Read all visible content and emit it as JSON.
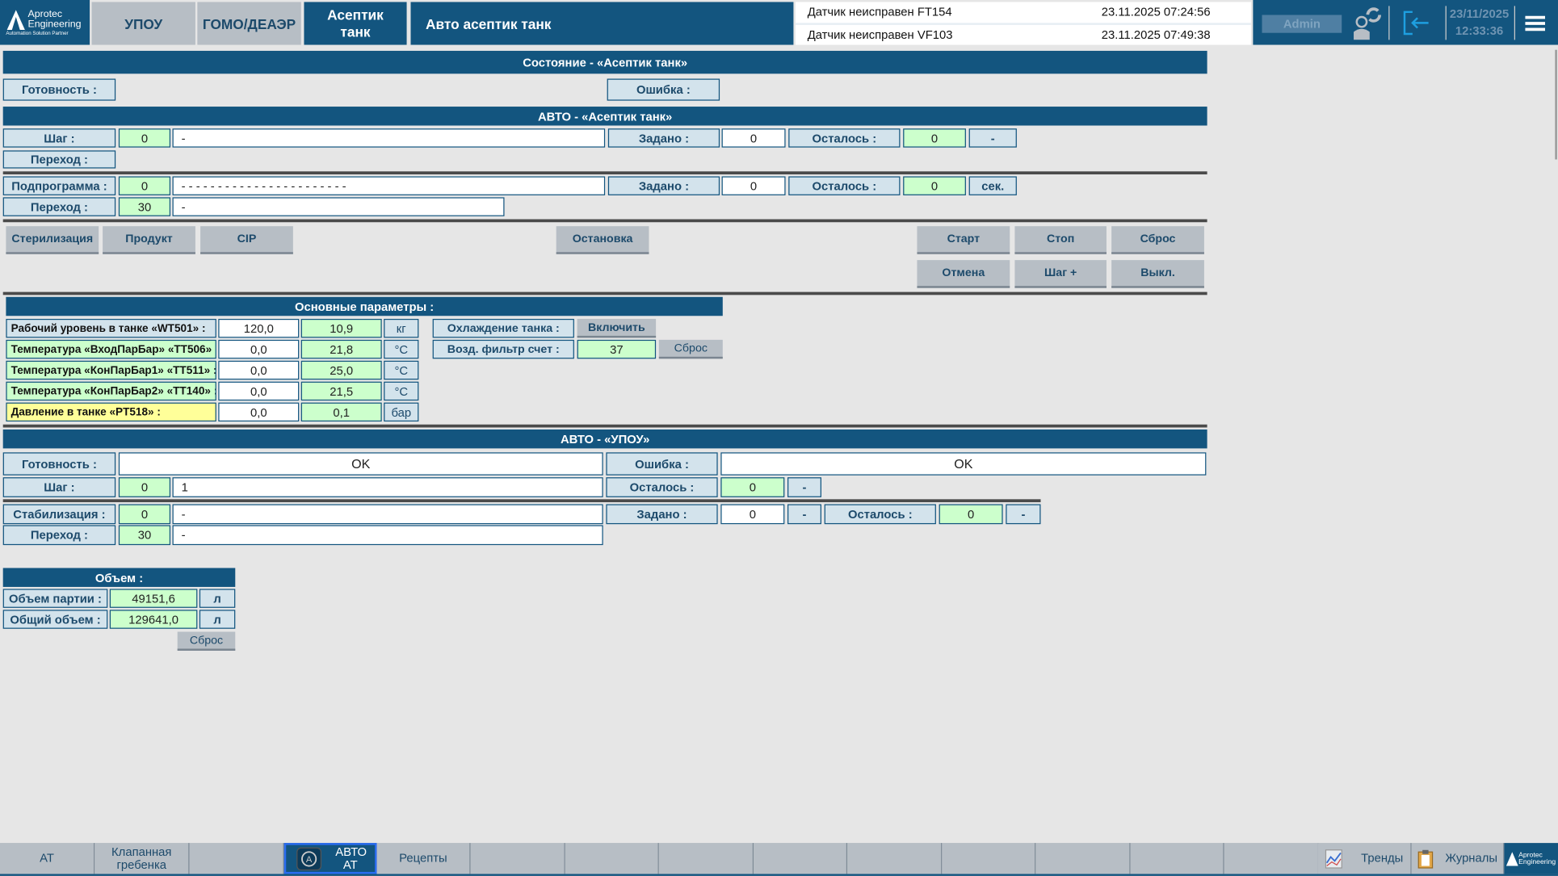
{
  "header": {
    "logo_line1": "Aprotec",
    "logo_line2": "Engineering",
    "logo_tagline": "Automation Solution Partner",
    "tabs": [
      {
        "label": "УПОУ"
      },
      {
        "label": "ГОМО/ДЕАЭР"
      },
      {
        "label": "Асептик танк",
        "active": true
      }
    ],
    "title": "Авто асептик танк",
    "alarms": [
      {
        "text": "Датчик неисправен FT154",
        "time": "23.11.2025 07:24:56"
      },
      {
        "text": "Датчик неисправен VF103",
        "time": "23.11.2025 07:49:38"
      }
    ],
    "user": "Admin",
    "date": "23/11/2025",
    "time": "12:33:36",
    "icons": [
      "user-switch-icon",
      "logout-icon",
      "menu-icon"
    ]
  },
  "state": {
    "title": "Состояние - «Асептик танк»",
    "ready_label": "Готовность :",
    "error_label": "Ошибка :"
  },
  "auto": {
    "title": "АВТО - «Асептик танк»",
    "step_label": "Шаг :",
    "step_value": "0",
    "step_text": "-",
    "set_label": "Задано :",
    "set_value": "0",
    "left_label": "Осталось :",
    "left_value": "0",
    "left_unit": "-",
    "transition_label": "Переход :",
    "sub_label": "Подпрограмма :",
    "sub_value": "0",
    "sub_text": "- - - - - - - - - - - - - - - - - - - - - - -",
    "sub_set_value": "0",
    "sub_left_value": "0",
    "sub_unit": "сек.",
    "sub_transition_value": "30",
    "sub_transition_text": "-"
  },
  "buttons": {
    "sterilization": "Стерилизация",
    "product": "Продукт",
    "cip": "CIP",
    "stop_process": "Остановка",
    "start": "Старт",
    "stop": "Стоп",
    "reset": "Сброс",
    "cancel": "Отмена",
    "step_plus": "Шаг +",
    "off": "Выкл."
  },
  "params": {
    "title": "Основные параметры :",
    "rows": [
      {
        "label": "Рабочий уровень в танке «WT501» :",
        "set": "120,0",
        "actual": "10,9",
        "unit": "кг"
      },
      {
        "label": "Температура «ВходПарБар» «TT506» :",
        "set": "0,0",
        "actual": "21,8",
        "unit": "°C"
      },
      {
        "label": "Температура «КонПарБар1» «TT511» :",
        "set": "0,0",
        "actual": "25,0",
        "unit": "°C"
      },
      {
        "label": "Температура «КонПарБар2» «TT140» :",
        "set": "0,0",
        "actual": "21,5",
        "unit": "°C"
      },
      {
        "label": "Давление в танке «PT518» :",
        "set": "0,0",
        "actual": "0,1",
        "unit": "бар"
      }
    ],
    "cooling_label": "Охлаждение танка :",
    "cooling_button": "Включить",
    "filter_label": "Возд. фильтр счет :",
    "filter_value": "37",
    "filter_reset": "Сброс"
  },
  "upou": {
    "title": "АВТО - «УПОУ»",
    "ready_label": "Готовность :",
    "ready_value": "OK",
    "error_label": "Ошибка :",
    "error_value": "OK",
    "step_label": "Шаг :",
    "step_value": "0",
    "step_text": "1",
    "left_label": "Осталось :",
    "left_value": "0",
    "left_unit": "-",
    "stab_label": "Стабилизация :",
    "stab_value": "0",
    "stab_text": "-",
    "set_label": "Задано :",
    "set_value": "0",
    "set_unit": "-",
    "stab_left_value": "0",
    "stab_left_unit": "-",
    "transition_label": "Переход :",
    "transition_value": "30",
    "transition_text": "-"
  },
  "volume": {
    "title": "Объем :",
    "batch_label": "Объем партии :",
    "batch_value": "49151,6",
    "batch_unit": "л",
    "total_label": "Общий объем :",
    "total_value": "129641,0",
    "total_unit": "л",
    "reset": "Сброс"
  },
  "bottom": {
    "items": [
      {
        "label": "АТ"
      },
      {
        "label": "Клапанная гребенка"
      },
      {
        "label": ""
      },
      {
        "label": "АВТО АТ",
        "active": true
      },
      {
        "label": "Рецепты"
      }
    ],
    "trends": "Тренды",
    "journals": "Журналы"
  },
  "colors": {
    "primary": "#13557f",
    "label_bg": "#d3e3ec",
    "value_green": "#ccffcc",
    "warning_yellow": "#ffff99",
    "button_gray": "#b7bec5"
  }
}
